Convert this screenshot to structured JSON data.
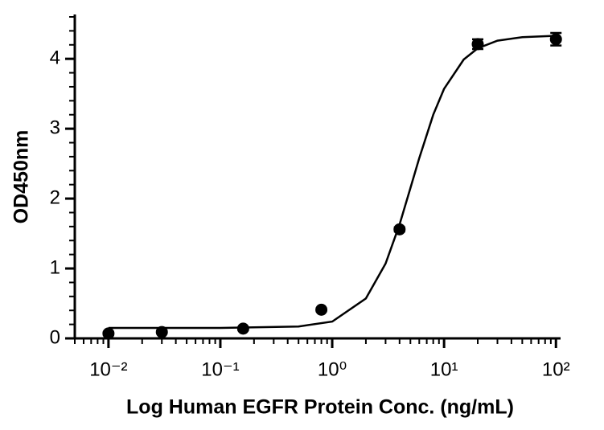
{
  "chart_data": {
    "type": "scatter",
    "xlabel": "Log Human EGFR Protein Conc. (ng/mL)",
    "ylabel": "OD450nm",
    "xscale": "log",
    "color": "#000000",
    "x": [
      0.01,
      0.03,
      0.16,
      0.8,
      4,
      20,
      100
    ],
    "values": [
      0.07,
      0.09,
      0.14,
      0.41,
      1.56,
      4.21,
      4.28
    ],
    "errors": [
      0.02,
      0.02,
      0.02,
      0.02,
      0.03,
      0.07,
      0.09
    ],
    "curve": {
      "x": [
        0.01,
        0.1,
        0.5,
        1,
        2,
        3,
        4,
        5,
        6,
        8,
        10,
        15,
        20,
        30,
        50,
        100
      ],
      "values": [
        0.15,
        0.15,
        0.17,
        0.24,
        0.57,
        1.07,
        1.63,
        2.15,
        2.58,
        3.2,
        3.57,
        3.99,
        4.15,
        4.26,
        4.31,
        4.33
      ]
    },
    "xlim": [
      0.005,
      110
    ],
    "ylim": [
      0,
      4.6
    ],
    "xticks": [
      {
        "value": 0.01,
        "label": "10⁻²"
      },
      {
        "value": 0.1,
        "label": "10⁻¹"
      },
      {
        "value": 1,
        "label": "10⁰"
      },
      {
        "value": 10,
        "label": "10¹"
      },
      {
        "value": 100,
        "label": "10²"
      }
    ],
    "yticks": [
      0,
      1,
      2,
      3,
      4
    ]
  }
}
